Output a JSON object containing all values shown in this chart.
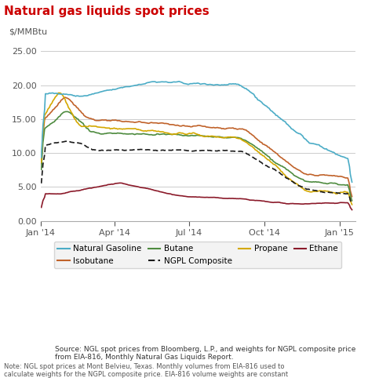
{
  "title": "Natural gas liquids spot prices",
  "ylabel": "$/MMBtu",
  "ylim": [
    0,
    27
  ],
  "yticks": [
    0.0,
    5.0,
    10.0,
    15.0,
    20.0,
    25.0
  ],
  "colors": {
    "Natural Gasoline": "#4bacc6",
    "Isobutane": "#c0622a",
    "Butane": "#4e8b3f",
    "NGPL Composite": "#1a1a1a",
    "Propane": "#d4a800",
    "Ethane": "#8b1a2a"
  },
  "source_text": "Source: NGL spot prices from Bloomberg, L.P., and weights for NGPL composite price\nfrom EIA-816, Monthly Natural Gas Liquids Report.",
  "note_text": "Note: NGL spot prices at Mont Belvieu, Texas. Monthly volumes from EIA-816 used to\ncalculate weights for the NGPL composite price. EIA-816 volume weights are constant\nthroughout a given month, and the latest available weights are applied to the three most\nrecent months. Natural gasoline is the term used in the spot and futures markets to describe\npentanes and hexanes, the primary components of pentanes plus.",
  "background_color": "#ffffff",
  "grid_color": "#cccccc"
}
